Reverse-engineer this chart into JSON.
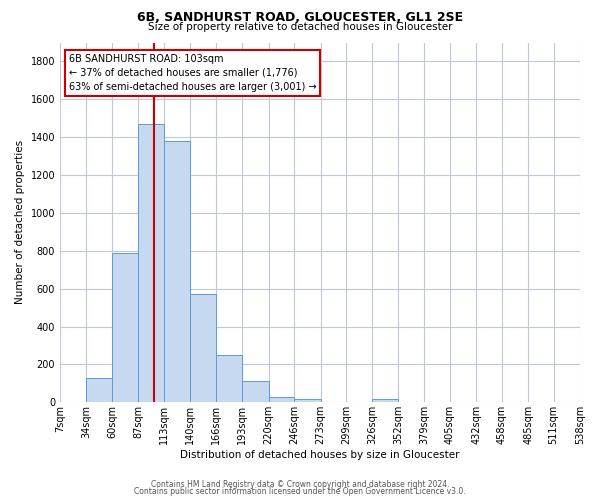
{
  "title": "6B, SANDHURST ROAD, GLOUCESTER, GL1 2SE",
  "subtitle": "Size of property relative to detached houses in Gloucester",
  "xlabel": "Distribution of detached houses by size in Gloucester",
  "ylabel": "Number of detached properties",
  "bar_edges": [
    7,
    34,
    60,
    87,
    113,
    140,
    166,
    193,
    220,
    246,
    273,
    299,
    326,
    352,
    379,
    405,
    432,
    458,
    485,
    511,
    538
  ],
  "bar_heights": [
    0,
    130,
    790,
    1470,
    1380,
    570,
    250,
    110,
    30,
    20,
    0,
    0,
    15,
    0,
    0,
    0,
    0,
    0,
    0,
    0
  ],
  "tick_labels": [
    "7sqm",
    "34sqm",
    "60sqm",
    "87sqm",
    "113sqm",
    "140sqm",
    "166sqm",
    "193sqm",
    "220sqm",
    "246sqm",
    "273sqm",
    "299sqm",
    "326sqm",
    "352sqm",
    "379sqm",
    "405sqm",
    "432sqm",
    "458sqm",
    "485sqm",
    "511sqm",
    "538sqm"
  ],
  "bar_color": "#c6d9f0",
  "bar_edge_color": "#5b9bd5",
  "red_line_x": 103,
  "annotation_title": "6B SANDHURST ROAD: 103sqm",
  "annotation_line1": "← 37% of detached houses are smaller (1,776)",
  "annotation_line2": "63% of semi-detached houses are larger (3,001) →",
  "annotation_box_color": "#ffffff",
  "annotation_box_edge": "#cc0000",
  "ylim": [
    0,
    1900
  ],
  "yticks": [
    0,
    200,
    400,
    600,
    800,
    1000,
    1200,
    1400,
    1600,
    1800
  ],
  "footer1": "Contains HM Land Registry data © Crown copyright and database right 2024.",
  "footer2": "Contains public sector information licensed under the Open Government Licence v3.0.",
  "bg_color": "#ffffff",
  "grid_color": "#c0c8d8"
}
